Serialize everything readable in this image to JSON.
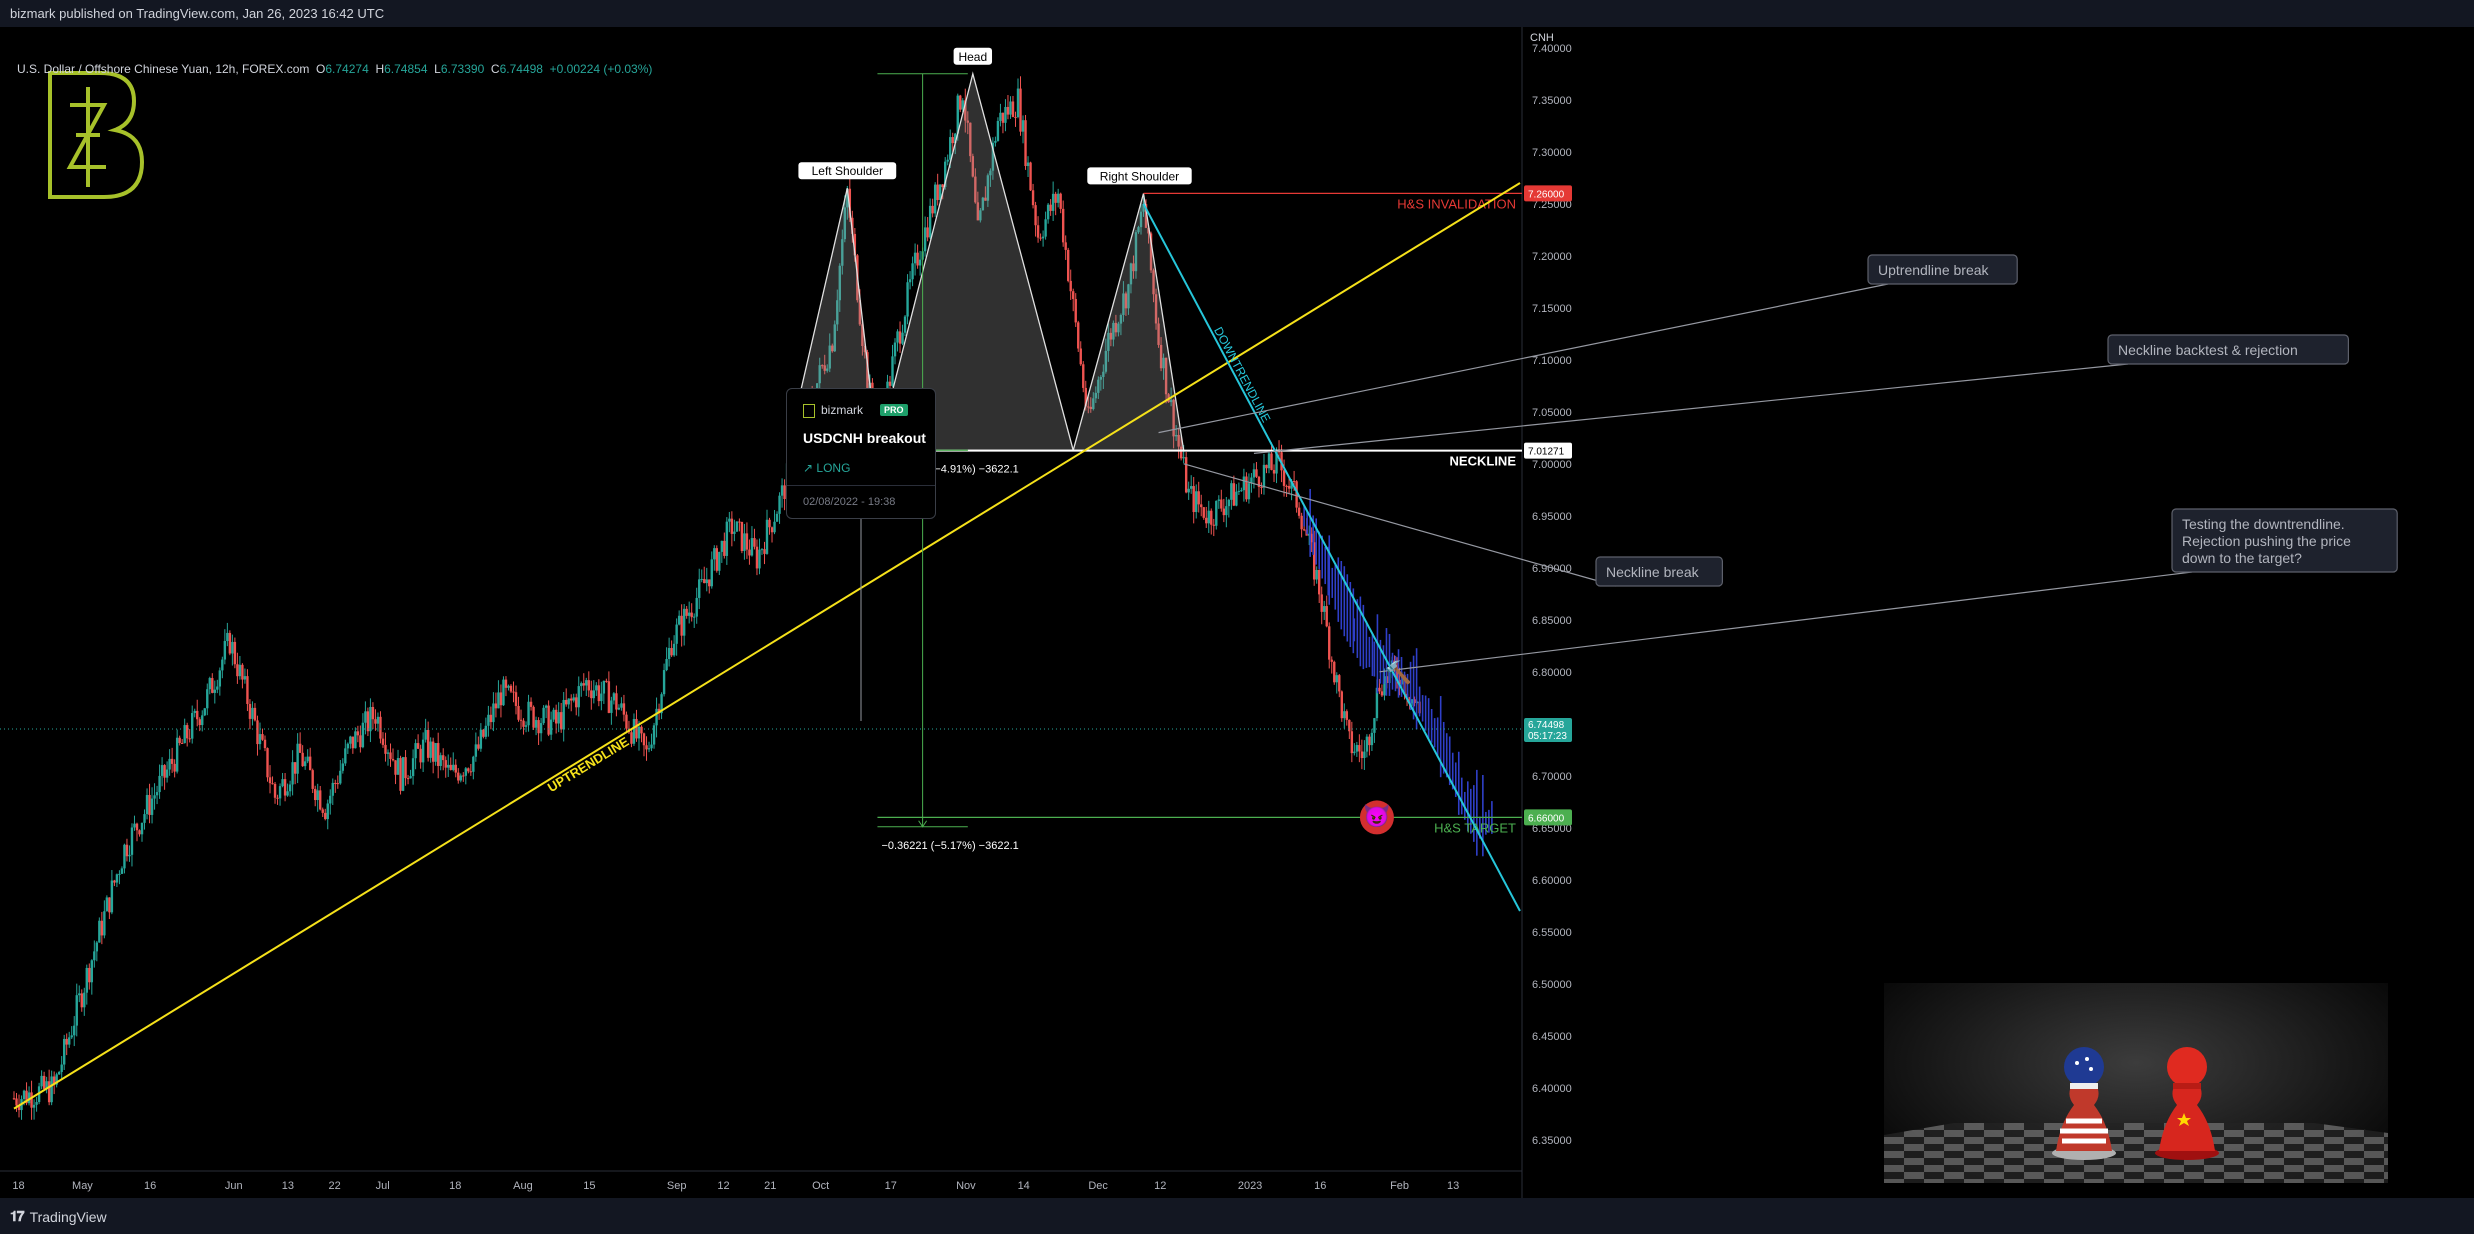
{
  "header": {
    "publisher": "bizmark published on TradingView.com, Jan 26, 2023 16:42 UTC"
  },
  "footer": {
    "brand": "TradingView"
  },
  "legend": {
    "symbol": "U.S. Dollar / Offshore Chinese Yuan, 12h, FOREX.com",
    "o_label": "O",
    "o": "6.74274",
    "h_label": "H",
    "h": "6.74854",
    "l_label": "L",
    "l": "6.73390",
    "c_label": "C",
    "c": "6.74498",
    "change": "+0.00224 (+0.03%)"
  },
  "idea_card": {
    "user": "bizmark",
    "badge": "PRO",
    "title": "USDCNH breakout",
    "direction": "↗ LONG",
    "date": "02/08/2022 - 19:38"
  },
  "colors": {
    "up": "#26a69a",
    "down": "#ef5350",
    "projection": "#2f3fc8",
    "uptrend": "#f5e11a",
    "downtrend": "#26c6da",
    "neckline": "#ffffff",
    "invalidation": "#e53935",
    "target": "#4caf50",
    "logo": "#a7c12a"
  },
  "chart_data": {
    "type": "candlestick",
    "instrument": "USDCNH",
    "timeframe": "12h",
    "price_axis": {
      "currency": "CNH",
      "ylim": [
        6.32,
        7.42
      ],
      "ticks": [
        "7.40000",
        "7.35000",
        "7.30000",
        "7.25000",
        "7.20000",
        "7.15000",
        "7.10000",
        "7.05000",
        "7.00000",
        "6.95000",
        "6.90000",
        "6.85000",
        "6.80000",
        "6.75000",
        "6.70000",
        "6.65000",
        "6.60000",
        "6.55000",
        "6.50000",
        "6.45000",
        "6.40000",
        "6.35000"
      ]
    },
    "time_axis": {
      "ticks": [
        "18",
        "May",
        "16",
        "Jun",
        "13",
        "22",
        "Jul",
        "18",
        "Aug",
        "15",
        "Sep",
        "12",
        "21",
        "Oct",
        "17",
        "Nov",
        "14",
        "Dec",
        "12",
        "2023",
        "16",
        "Feb",
        "13"
      ]
    },
    "price_path": [
      [
        0,
        6.39
      ],
      [
        8,
        6.4
      ],
      [
        14,
        6.5
      ],
      [
        22,
        6.63
      ],
      [
        30,
        6.7
      ],
      [
        38,
        6.77
      ],
      [
        43,
        6.83
      ],
      [
        48,
        6.75
      ],
      [
        52,
        6.68
      ],
      [
        57,
        6.72
      ],
      [
        62,
        6.67
      ],
      [
        67,
        6.73
      ],
      [
        72,
        6.76
      ],
      [
        77,
        6.7
      ],
      [
        82,
        6.73
      ],
      [
        87,
        6.7
      ],
      [
        92,
        6.72
      ],
      [
        97,
        6.78
      ],
      [
        102,
        6.76
      ],
      [
        108,
        6.75
      ],
      [
        114,
        6.79
      ],
      [
        120,
        6.77
      ],
      [
        126,
        6.72
      ],
      [
        131,
        6.83
      ],
      [
        137,
        6.88
      ],
      [
        143,
        6.94
      ],
      [
        148,
        6.91
      ],
      [
        153,
        6.97
      ],
      [
        158,
        7.05
      ],
      [
        163,
        7.12
      ],
      [
        166,
        7.26
      ],
      [
        170,
        7.08
      ],
      [
        172,
        7.02
      ],
      [
        176,
        7.12
      ],
      [
        180,
        7.2
      ],
      [
        185,
        7.28
      ],
      [
        189,
        7.36
      ],
      [
        192,
        7.22
      ],
      [
        196,
        7.33
      ],
      [
        200,
        7.35
      ],
      [
        204,
        7.22
      ],
      [
        208,
        7.26
      ],
      [
        211,
        7.15
      ],
      [
        214,
        7.04
      ],
      [
        218,
        7.12
      ],
      [
        222,
        7.17
      ],
      [
        225,
        7.25
      ],
      [
        228,
        7.12
      ],
      [
        231,
        7.04
      ],
      [
        234,
        6.97
      ],
      [
        238,
        6.95
      ],
      [
        243,
        6.97
      ],
      [
        248,
        6.99
      ],
      [
        252,
        7.0
      ],
      [
        256,
        6.96
      ],
      [
        260,
        6.88
      ],
      [
        263,
        6.8
      ],
      [
        266,
        6.73
      ],
      [
        269,
        6.72
      ],
      [
        272,
        6.79
      ],
      [
        276,
        6.8
      ],
      [
        280,
        6.76
      ]
    ],
    "projection_path": [
      [
        257,
        6.96
      ],
      [
        262,
        6.9
      ],
      [
        267,
        6.85
      ],
      [
        271,
        6.82
      ],
      [
        274,
        6.81
      ],
      [
        277,
        6.8
      ],
      [
        280,
        6.78
      ],
      [
        283,
        6.75
      ],
      [
        286,
        6.72
      ],
      [
        289,
        6.68
      ],
      [
        292,
        6.66
      ],
      [
        295,
        6.67
      ]
    ],
    "x_max": 300,
    "last_price": "6.74498",
    "countdown": "05:17:23",
    "levels": [
      {
        "name": "H&S INVALIDATION",
        "price": 7.26,
        "label": "7.26000"
      },
      {
        "name": "NECKLINE",
        "price": 7.0127,
        "label": "7.01271"
      },
      {
        "name": "H&S TARGET",
        "price": 6.66,
        "label": "6.66000"
      }
    ],
    "pattern_points": {
      "neckline_left": [
        154,
        7.013
      ],
      "left_shoulder": [
        166,
        7.265
      ],
      "left_trough": [
        172,
        7.013
      ],
      "head": [
        191,
        7.375
      ],
      "right_trough": [
        211,
        7.013
      ],
      "right_shoulder": [
        225,
        7.26
      ],
      "neckline_right": [
        233,
        7.013
      ]
    },
    "trendlines": {
      "uptrend": {
        "from": [
          0,
          6.38
        ],
        "to": [
          300,
          7.27
        ]
      },
      "downtrend": {
        "from": [
          225,
          7.25
        ],
        "to": [
          300,
          6.57
        ]
      }
    },
    "measurements": [
      {
        "from": [
          172,
          7.375
        ],
        "to": [
          172,
          7.013
        ],
        "label": "−0.36221 (−4.91%) −3622.1"
      },
      {
        "from": [
          180,
          7.013
        ],
        "to": [
          180,
          6.651
        ],
        "label": "−0.36221 (−5.17%) −3622.1"
      }
    ],
    "labels": {
      "left_shoulder": "Left Shoulder",
      "head": "Head",
      "right_shoulder": "Right Shoulder",
      "uptrendline": "UPTRENDLINE",
      "downtrendline": "DOWNTRENDLINE",
      "neckline": "NECKLINE",
      "invalidation": "H&S INVALIDATION",
      "target": "H&S TARGET"
    },
    "callouts": [
      {
        "name": "uptrendline-break",
        "text": [
          "Uptrendline break"
        ]
      },
      {
        "name": "neckline-backtest",
        "text": [
          "Neckline backtest & rejection"
        ]
      },
      {
        "name": "neckline-break",
        "text": [
          "Neckline break"
        ]
      },
      {
        "name": "testing-downtrend",
        "text": [
          "Testing the downtrendline.",
          "Rejection pushing the price",
          "down to the target?"
        ]
      }
    ]
  }
}
